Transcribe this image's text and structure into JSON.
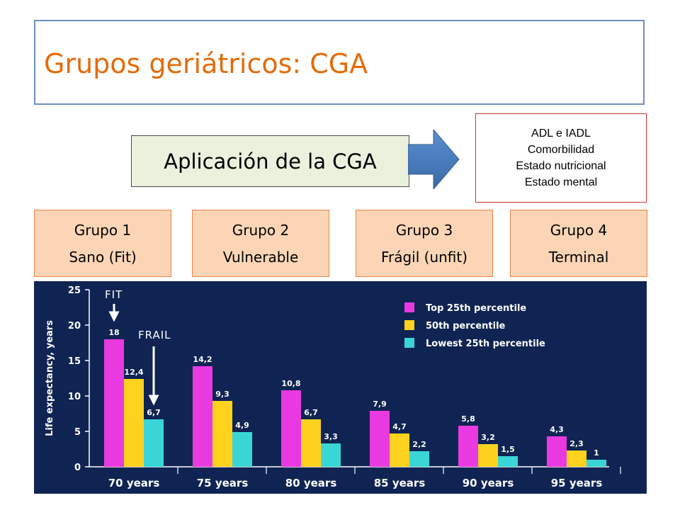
{
  "title": "Grupos geriátricos: CGA",
  "cga_label": "Aplicación de la CGA",
  "assessment_items": [
    "ADL e IADL",
    "Comorbilidad",
    "Estado nutricional",
    "Estado mental"
  ],
  "groups": [
    {
      "name": "Grupo 1",
      "desc": "Sano (Fit)"
    },
    {
      "name": "Grupo 2",
      "desc": "Vulnerable"
    },
    {
      "name": "Grupo 3",
      "desc": "Frágil (unfit)"
    },
    {
      "name": "Grupo 4",
      "desc": "Terminal"
    }
  ],
  "colors": {
    "title": "#e46c0a",
    "arrow": "#4a7ebb",
    "chart_bg": "#0f2452",
    "group_fill": "#fbd5b5"
  },
  "chart_data": {
    "type": "bar",
    "ylabel": "Life expectancy, years",
    "ylim": [
      0,
      25
    ],
    "yticks": [
      0,
      5,
      10,
      15,
      20,
      25
    ],
    "categories": [
      "70 years",
      "75 years",
      "80 years",
      "85 years",
      "90 years",
      "95 years"
    ],
    "series": [
      {
        "name": "Top 25th percentile",
        "color": "#e83ae0",
        "values": [
          18,
          14.2,
          10.8,
          7.9,
          5.8,
          4.3
        ],
        "labels": [
          "18",
          "14,2",
          "10,8",
          "7,9",
          "5,8",
          "4,3"
        ]
      },
      {
        "name": "50th percentile",
        "color": "#ffd21e",
        "values": [
          12.4,
          9.3,
          6.7,
          4.7,
          3.2,
          2.3
        ],
        "labels": [
          "12,4",
          "9,3",
          "6,7",
          "4,7",
          "3,2",
          "2,3"
        ]
      },
      {
        "name": "Lowest 25th percentile",
        "color": "#3ad6d6",
        "values": [
          6.7,
          4.9,
          3.3,
          2.2,
          1.5,
          1
        ],
        "labels": [
          "6,7",
          "4,9",
          "3,3",
          "2,2",
          "1,5",
          "1"
        ]
      }
    ],
    "annotations": [
      {
        "text": "FIT"
      },
      {
        "text": "FRAIL"
      }
    ],
    "legend_position": "top-right",
    "grid": false
  }
}
